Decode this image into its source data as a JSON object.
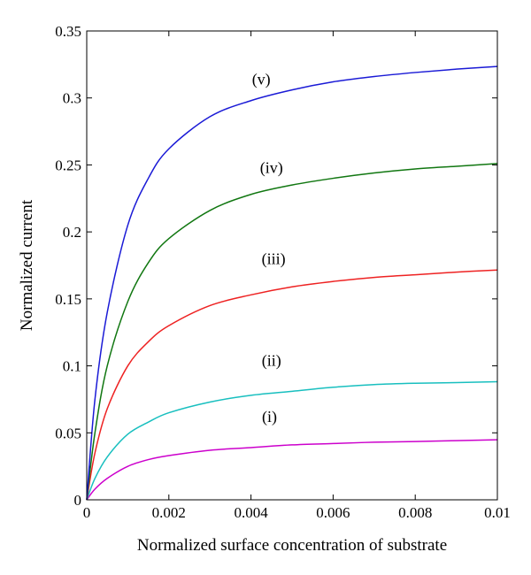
{
  "chart_data": {
    "type": "line",
    "title": "",
    "xlabel": "Normalized surface concentration of substrate",
    "ylabel": "Normalized current",
    "xlim": [
      0,
      0.01
    ],
    "ylim": [
      0,
      0.35
    ],
    "grid": false,
    "legend": "none",
    "xticks": [
      0,
      0.002,
      0.004,
      0.006,
      0.008,
      0.01
    ],
    "xtick_labels": [
      "0",
      "0.002",
      "0.004",
      "0.006",
      "0.008",
      "0.01"
    ],
    "yticks": [
      0,
      0.05,
      0.1,
      0.15,
      0.2,
      0.25,
      0.3,
      0.35
    ],
    "ytick_labels": [
      "0",
      "0.05",
      "0.1",
      "0.15",
      "0.2",
      "0.25",
      "0.3",
      "0.35"
    ],
    "series": [
      {
        "label": "(i)",
        "color": "#cc00cc",
        "label_at": [
          0.00445,
          0.058
        ],
        "x": [
          0,
          0.0002,
          0.0005,
          0.001,
          0.0015,
          0.002,
          0.003,
          0.004,
          0.005,
          0.006,
          0.007,
          0.008,
          0.009,
          0.01
        ],
        "y": [
          0,
          0.008,
          0.016,
          0.025,
          0.03,
          0.033,
          0.037,
          0.039,
          0.041,
          0.042,
          0.043,
          0.0435,
          0.0442,
          0.0448
        ]
      },
      {
        "label": "(ii)",
        "color": "#18bfbf",
        "label_at": [
          0.0045,
          0.1
        ],
        "x": [
          0,
          0.0002,
          0.0005,
          0.001,
          0.0015,
          0.002,
          0.003,
          0.004,
          0.005,
          0.006,
          0.007,
          0.008,
          0.009,
          0.01
        ],
        "y": [
          0,
          0.016,
          0.032,
          0.049,
          0.058,
          0.065,
          0.073,
          0.078,
          0.081,
          0.084,
          0.086,
          0.087,
          0.0875,
          0.0882
        ]
      },
      {
        "label": "(iii)",
        "color": "#ee2222",
        "label_at": [
          0.00455,
          0.176
        ],
        "x": [
          0,
          0.0002,
          0.0005,
          0.001,
          0.0015,
          0.002,
          0.003,
          0.004,
          0.005,
          0.006,
          0.007,
          0.008,
          0.009,
          0.01
        ],
        "y": [
          0,
          0.035,
          0.068,
          0.1,
          0.118,
          0.13,
          0.145,
          0.153,
          0.159,
          0.163,
          0.166,
          0.168,
          0.17,
          0.1715
        ]
      },
      {
        "label": "(iv)",
        "color": "#117711",
        "label_at": [
          0.0045,
          0.244
        ],
        "x": [
          0,
          0.0002,
          0.0005,
          0.001,
          0.0015,
          0.002,
          0.003,
          0.004,
          0.005,
          0.006,
          0.007,
          0.008,
          0.009,
          0.01
        ],
        "y": [
          0,
          0.05,
          0.1,
          0.148,
          0.177,
          0.195,
          0.216,
          0.228,
          0.235,
          0.24,
          0.244,
          0.247,
          0.249,
          0.251
        ]
      },
      {
        "label": "(v)",
        "color": "#1a1ad6",
        "label_at": [
          0.00425,
          0.31
        ],
        "x": [
          0,
          0.0002,
          0.0005,
          0.001,
          0.0015,
          0.002,
          0.003,
          0.004,
          0.005,
          0.006,
          0.007,
          0.008,
          0.009,
          0.01
        ],
        "y": [
          0,
          0.075,
          0.14,
          0.205,
          0.24,
          0.262,
          0.286,
          0.298,
          0.306,
          0.312,
          0.316,
          0.319,
          0.3215,
          0.3235
        ]
      }
    ]
  }
}
